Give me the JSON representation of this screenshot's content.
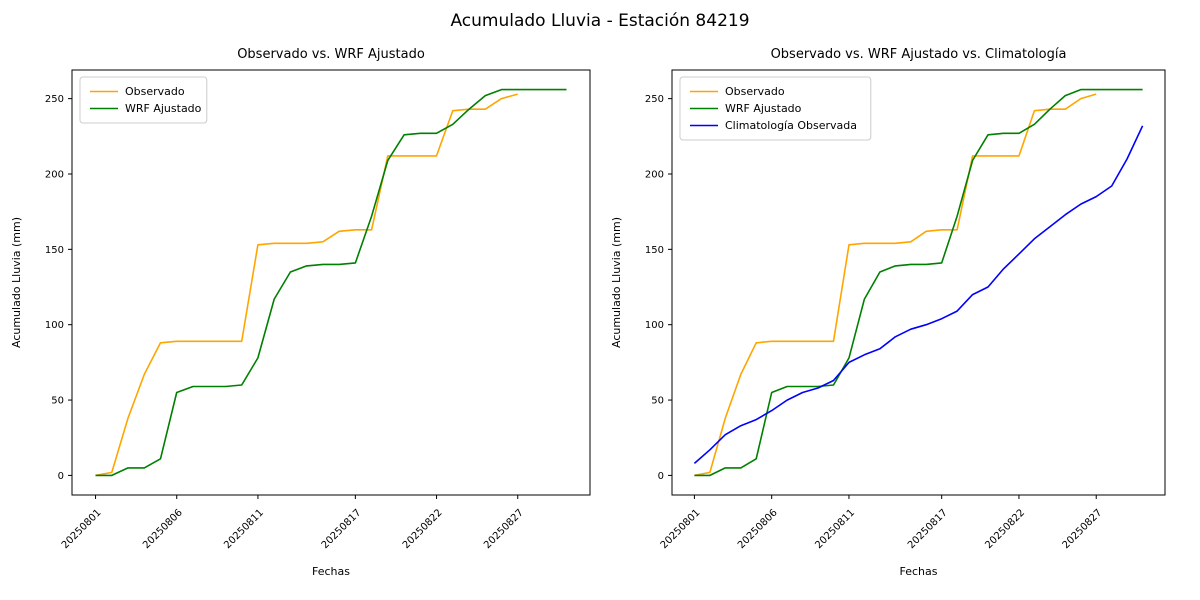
{
  "figure": {
    "title": "Acumulado Lluvia - Estación 84219",
    "background": "#ffffff"
  },
  "chart_data": [
    {
      "type": "line",
      "title": "Observado vs. WRF Ajustado",
      "xlabel": "Fechas",
      "ylabel": "Acumulado Lluvia (mm)",
      "legend_position": "upper-left",
      "grid": false,
      "ylim": [
        -13,
        269
      ],
      "yticks": [
        0,
        50,
        100,
        150,
        200,
        250
      ],
      "x": [
        "20250801",
        "20250802",
        "20250803",
        "20250804",
        "20250805",
        "20250806",
        "20250807",
        "20250808",
        "20250809",
        "20250810",
        "20250811",
        "20250812",
        "20250813",
        "20250814",
        "20250815",
        "20250816",
        "20250817",
        "20250818",
        "20250819",
        "20250820",
        "20250821",
        "20250822",
        "20250823",
        "20250824",
        "20250825",
        "20250826",
        "20250827",
        "20250828",
        "20250829",
        "20250830"
      ],
      "xticks": [
        {
          "index": 0,
          "label": "20250801"
        },
        {
          "index": 5,
          "label": "20250806"
        },
        {
          "index": 10,
          "label": "20250811"
        },
        {
          "index": 16,
          "label": "20250817"
        },
        {
          "index": 21,
          "label": "20250822"
        },
        {
          "index": 26,
          "label": "20250827"
        }
      ],
      "series": [
        {
          "name": "Observado",
          "color": "#ffa500",
          "values": [
            0,
            2,
            38,
            67,
            88,
            89,
            89,
            89,
            89,
            89,
            153,
            154,
            154,
            154,
            155,
            162,
            163,
            163,
            212,
            212,
            212,
            212,
            242,
            243,
            243,
            250,
            253,
            null,
            null,
            null
          ]
        },
        {
          "name": "WRF Ajustado",
          "color": "#008000",
          "values": [
            0,
            0,
            5,
            5,
            11,
            55,
            59,
            59,
            59,
            60,
            78,
            117,
            135,
            139,
            140,
            140,
            141,
            172,
            209,
            226,
            227,
            227,
            233,
            243,
            252,
            256,
            256,
            256,
            256,
            256
          ]
        }
      ]
    },
    {
      "type": "line",
      "title": "Observado vs. WRF Ajustado vs. Climatología",
      "xlabel": "Fechas",
      "ylabel": "Acumulado Lluvia (mm)",
      "legend_position": "upper-left",
      "grid": false,
      "ylim": [
        -13,
        269
      ],
      "yticks": [
        0,
        50,
        100,
        150,
        200,
        250
      ],
      "x": [
        "20250801",
        "20250802",
        "20250803",
        "20250804",
        "20250805",
        "20250806",
        "20250807",
        "20250808",
        "20250809",
        "20250810",
        "20250811",
        "20250812",
        "20250813",
        "20250814",
        "20250815",
        "20250816",
        "20250817",
        "20250818",
        "20250819",
        "20250820",
        "20250821",
        "20250822",
        "20250823",
        "20250824",
        "20250825",
        "20250826",
        "20250827",
        "20250828",
        "20250829",
        "20250830"
      ],
      "xticks": [
        {
          "index": 0,
          "label": "20250801"
        },
        {
          "index": 5,
          "label": "20250806"
        },
        {
          "index": 10,
          "label": "20250811"
        },
        {
          "index": 16,
          "label": "20250817"
        },
        {
          "index": 21,
          "label": "20250822"
        },
        {
          "index": 26,
          "label": "20250827"
        }
      ],
      "series": [
        {
          "name": "Observado",
          "color": "#ffa500",
          "values": [
            0,
            2,
            38,
            67,
            88,
            89,
            89,
            89,
            89,
            89,
            153,
            154,
            154,
            154,
            155,
            162,
            163,
            163,
            212,
            212,
            212,
            212,
            242,
            243,
            243,
            250,
            253,
            null,
            null,
            null
          ]
        },
        {
          "name": "WRF Ajustado",
          "color": "#008000",
          "values": [
            0,
            0,
            5,
            5,
            11,
            55,
            59,
            59,
            59,
            60,
            78,
            117,
            135,
            139,
            140,
            140,
            141,
            172,
            209,
            226,
            227,
            227,
            233,
            243,
            252,
            256,
            256,
            256,
            256,
            256
          ]
        },
        {
          "name": "Climatología Observada",
          "color": "#0000ff",
          "values": [
            8,
            17,
            27,
            33,
            37,
            43,
            50,
            55,
            58,
            63,
            75,
            80,
            84,
            92,
            97,
            100,
            104,
            109,
            120,
            125,
            137,
            147,
            157,
            165,
            173,
            180,
            185,
            192,
            210,
            232
          ]
        }
      ]
    }
  ]
}
